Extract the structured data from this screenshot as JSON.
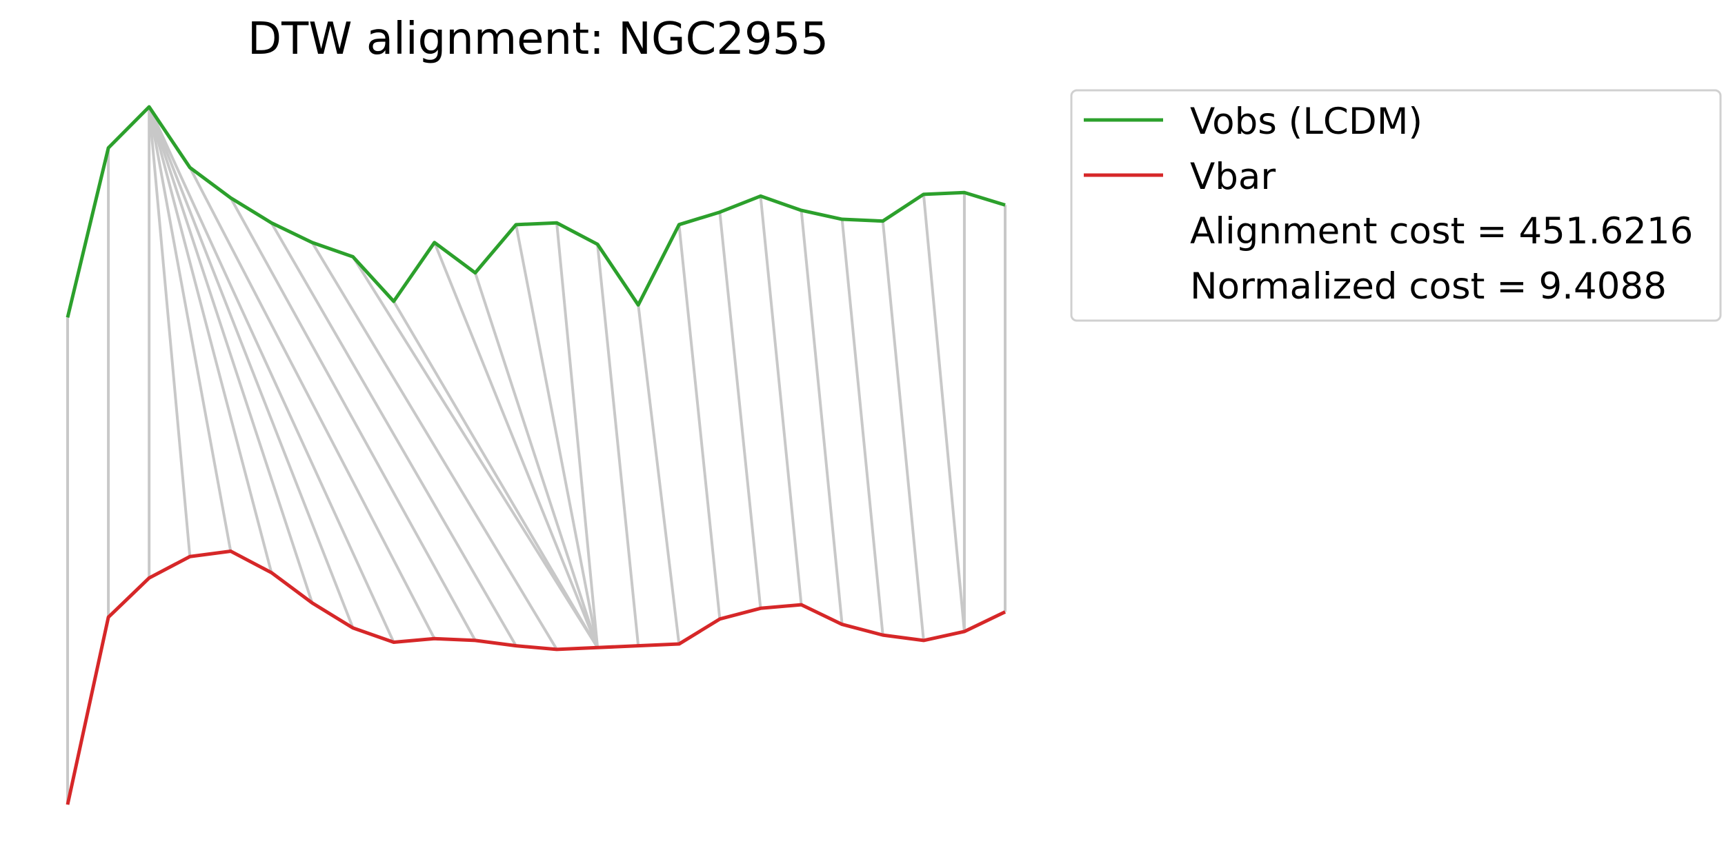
{
  "chart_data": {
    "type": "line",
    "title": "DTW alignment: NGC2955",
    "xlabel": "",
    "ylabel": "",
    "axes_visible": false,
    "grid": false,
    "legend_placement": "outside-upper-right",
    "x": [
      0,
      1,
      2,
      3,
      4,
      5,
      6,
      7,
      8,
      9,
      10,
      11,
      12,
      13,
      14,
      15,
      16,
      17,
      18,
      19,
      20,
      21,
      22,
      23
    ],
    "series": [
      {
        "name": "Vobs (LCDM)",
        "color": "#2ca02c",
        "values": [
          19.7,
          29.2,
          31.5,
          28.1,
          26.4,
          25.0,
          23.9,
          23.1,
          20.6,
          23.9,
          22.2,
          24.9,
          25.0,
          23.8,
          20.4,
          24.9,
          25.6,
          26.5,
          25.7,
          25.2,
          25.1,
          26.6,
          26.7,
          26.0
        ]
      },
      {
        "name": "Vbar",
        "color": "#d62728",
        "values": [
          -7.6,
          2.9,
          5.1,
          6.3,
          6.6,
          5.4,
          3.7,
          2.3,
          1.5,
          1.7,
          1.6,
          1.3,
          1.1,
          1.2,
          1.3,
          1.4,
          2.8,
          3.4,
          3.6,
          2.5,
          1.9,
          1.6,
          2.1,
          3.2
        ]
      }
    ],
    "alignment_pairs": [
      [
        0,
        0
      ],
      [
        1,
        1
      ],
      [
        2,
        2
      ],
      [
        2,
        3
      ],
      [
        2,
        4
      ],
      [
        2,
        5
      ],
      [
        2,
        6
      ],
      [
        2,
        7
      ],
      [
        2,
        8
      ],
      [
        3,
        9
      ],
      [
        4,
        10
      ],
      [
        5,
        11
      ],
      [
        6,
        12
      ],
      [
        7,
        13
      ],
      [
        8,
        13
      ],
      [
        9,
        13
      ],
      [
        10,
        13
      ],
      [
        11,
        13
      ],
      [
        12,
        13
      ],
      [
        13,
        14
      ],
      [
        14,
        15
      ],
      [
        15,
        16
      ],
      [
        16,
        17
      ],
      [
        17,
        18
      ],
      [
        18,
        19
      ],
      [
        19,
        20
      ],
      [
        20,
        21
      ],
      [
        21,
        22
      ],
      [
        22,
        22
      ],
      [
        23,
        23
      ]
    ],
    "connector_color": "#c8c8c8",
    "legend_extra": [
      "Alignment cost = 451.6216",
      "Normalized cost = 9.4088"
    ]
  }
}
